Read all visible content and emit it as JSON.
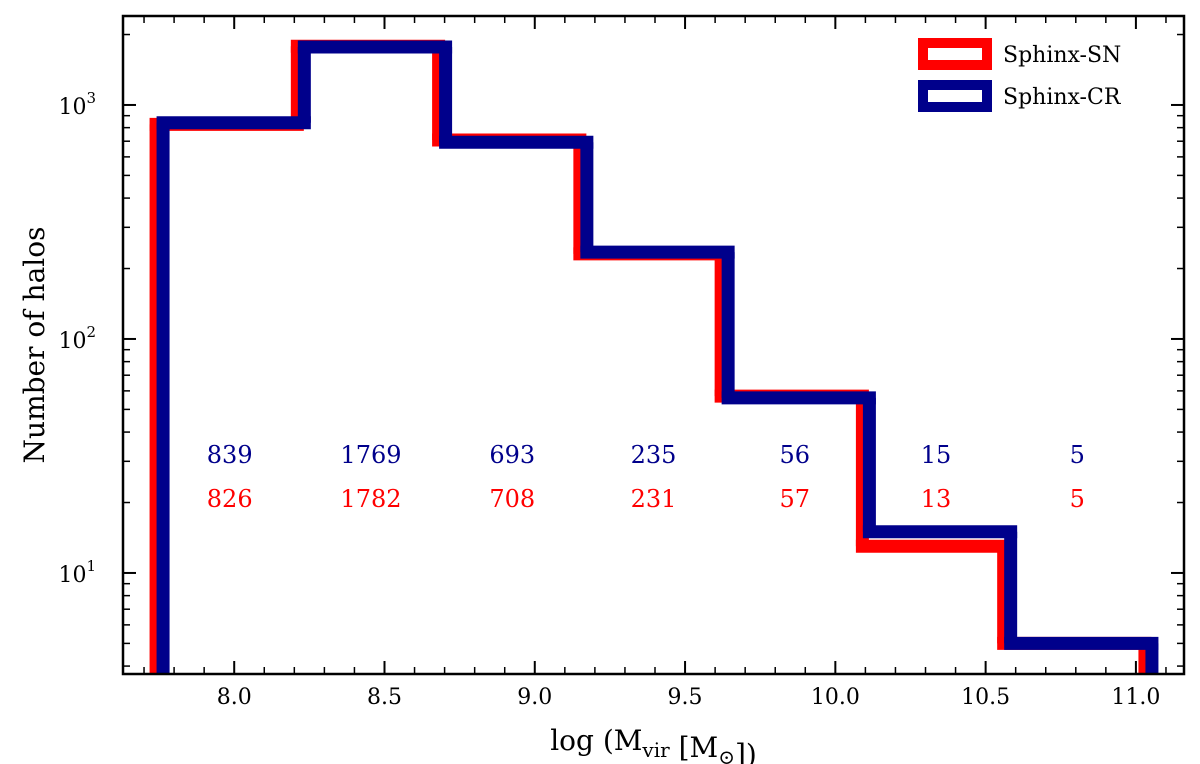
{
  "chart_data": {
    "type": "histogram",
    "title": "",
    "xlabel": "log (M",
    "xlabel_sub": "vir",
    "xlabel_mid": " [M",
    "xlabel_sun": "⊙",
    "xlabel_end": "])",
    "ylabel": "Number of halos",
    "y_scale": "log",
    "xlim": [
      7.63,
      11.16
    ],
    "ylim": [
      3.7,
      2400
    ],
    "x_ticks": [
      {
        "value": 8.0,
        "label": "8.0"
      },
      {
        "value": 8.5,
        "label": "8.5"
      },
      {
        "value": 9.0,
        "label": "9.0"
      },
      {
        "value": 9.5,
        "label": "9.5"
      },
      {
        "value": 10.0,
        "label": "10.0"
      },
      {
        "value": 10.5,
        "label": "10.5"
      },
      {
        "value": 11.0,
        "label": "11.0"
      }
    ],
    "y_major_ticks": [
      {
        "value": 10,
        "label_base": "10",
        "label_exp": "1"
      },
      {
        "value": 100,
        "label_base": "10",
        "label_exp": "2"
      },
      {
        "value": 1000,
        "label_base": "10",
        "label_exp": "3"
      }
    ],
    "bin_edges": [
      7.75,
      8.22,
      8.69,
      9.16,
      9.63,
      10.1,
      10.57,
      11.04
    ],
    "series": [
      {
        "name": "Sphinx-SN",
        "color": "#ff0000",
        "values": [
          826,
          1782,
          708,
          231,
          57,
          13,
          5
        ]
      },
      {
        "name": "Sphinx-CR",
        "color": "#00008b",
        "values": [
          839,
          1769,
          693,
          235,
          56,
          15,
          5
        ]
      }
    ],
    "count_labels_cr": [
      "839",
      "1769",
      "693",
      "235",
      "56",
      "15",
      "5"
    ],
    "count_labels_sn": [
      "826",
      "1782",
      "708",
      "231",
      "57",
      "13",
      "5"
    ],
    "legend": {
      "position": "top-right",
      "entries": [
        "Sphinx-SN",
        "Sphinx-CR"
      ]
    }
  }
}
